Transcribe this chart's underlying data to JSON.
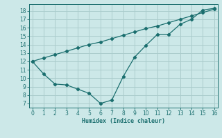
{
  "xlabel": "Humidex (Indice chaleur)",
  "background_color": "#cce8e8",
  "grid_color": "#aacccc",
  "line_color": "#1a6e6e",
  "line_straight_x": [
    0,
    1,
    2,
    3,
    4,
    5,
    6,
    7,
    8,
    9,
    10,
    11,
    12,
    13,
    14,
    15,
    16
  ],
  "line_straight_y": [
    12,
    12.4,
    12.8,
    13.2,
    13.6,
    14.0,
    14.3,
    14.7,
    15.1,
    15.5,
    15.9,
    16.2,
    16.6,
    17.0,
    17.4,
    17.8,
    18.2
  ],
  "line_curve_x": [
    0,
    1,
    2,
    3,
    4,
    5,
    6,
    7,
    8,
    9,
    10,
    11,
    12,
    13,
    14,
    15,
    16
  ],
  "line_curve_y": [
    12,
    10.5,
    9.3,
    9.2,
    8.7,
    8.2,
    7.0,
    7.4,
    10.2,
    12.5,
    13.9,
    15.2,
    15.2,
    16.4,
    17.0,
    18.1,
    18.3
  ],
  "xlim": [
    -0.3,
    16.3
  ],
  "ylim": [
    6.5,
    18.8
  ],
  "xticks": [
    0,
    1,
    2,
    3,
    4,
    5,
    6,
    7,
    8,
    9,
    10,
    11,
    12,
    13,
    14,
    15,
    16
  ],
  "yticks": [
    7,
    8,
    9,
    10,
    11,
    12,
    13,
    14,
    15,
    16,
    17,
    18
  ]
}
